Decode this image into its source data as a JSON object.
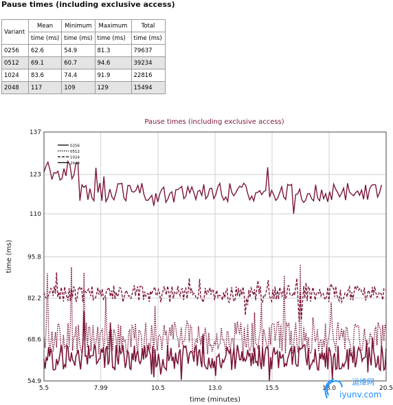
{
  "header": {
    "title": "Pause times (including exclusive access)"
  },
  "table": {
    "variant_header": "Variant",
    "columns": [
      {
        "name": "Mean",
        "unit": "time (ms)"
      },
      {
        "name": "Minimum",
        "unit": "time (ms)"
      },
      {
        "name": "Maximum",
        "unit": "time (ms)"
      },
      {
        "name": "Total",
        "unit": "time (ms)"
      }
    ],
    "rows": [
      {
        "variant": "0256",
        "cells": [
          "62.6",
          "54.9",
          "81.3",
          "79637"
        ]
      },
      {
        "variant": "0512",
        "cells": [
          "69.1",
          "60.7",
          "94.6",
          "39234"
        ]
      },
      {
        "variant": "1024",
        "cells": [
          "83.6",
          "74.4",
          "91.9",
          "22816"
        ]
      },
      {
        "variant": "2048",
        "cells": [
          "117",
          "109",
          "129",
          "15494"
        ]
      }
    ]
  },
  "chart_data": {
    "type": "line",
    "title": "Pause times (including exclusive access)",
    "xlabel": "time (minutes)",
    "ylabel": "time (ms)",
    "xlim": [
      5.5,
      20.5
    ],
    "ylim": [
      54.9,
      137
    ],
    "x_ticks": [
      "5.5",
      "7.99",
      "10.5",
      "13.0",
      "15.5",
      "18.0",
      "20.5"
    ],
    "y_ticks": [
      "54.9",
      "68.6",
      "82.2",
      "95.8",
      "110",
      "123",
      "137"
    ],
    "grid": true,
    "legend_position": "top-left",
    "color": "#7a1538",
    "series": [
      {
        "name": "0256",
        "style": "solid",
        "mean": 62.6,
        "min": 54.9,
        "max": 81.3,
        "x_range": [
          5.5,
          20.5
        ]
      },
      {
        "name": "0512",
        "style": "dotted",
        "mean": 69.1,
        "min": 60.7,
        "max": 94.6,
        "x_range": [
          5.5,
          20.5
        ]
      },
      {
        "name": "1024",
        "style": "dashed",
        "mean": 83.6,
        "min": 74.4,
        "max": 91.9,
        "x_range": [
          5.5,
          20.5
        ]
      },
      {
        "name": "2048",
        "style": "solid",
        "mean": 117,
        "min": 109,
        "max": 129,
        "x_range": [
          5.5,
          20.3
        ]
      }
    ]
  },
  "watermark": {
    "brand": "运维网",
    "url": "iyunv.com",
    "color": "#1e90ff"
  }
}
